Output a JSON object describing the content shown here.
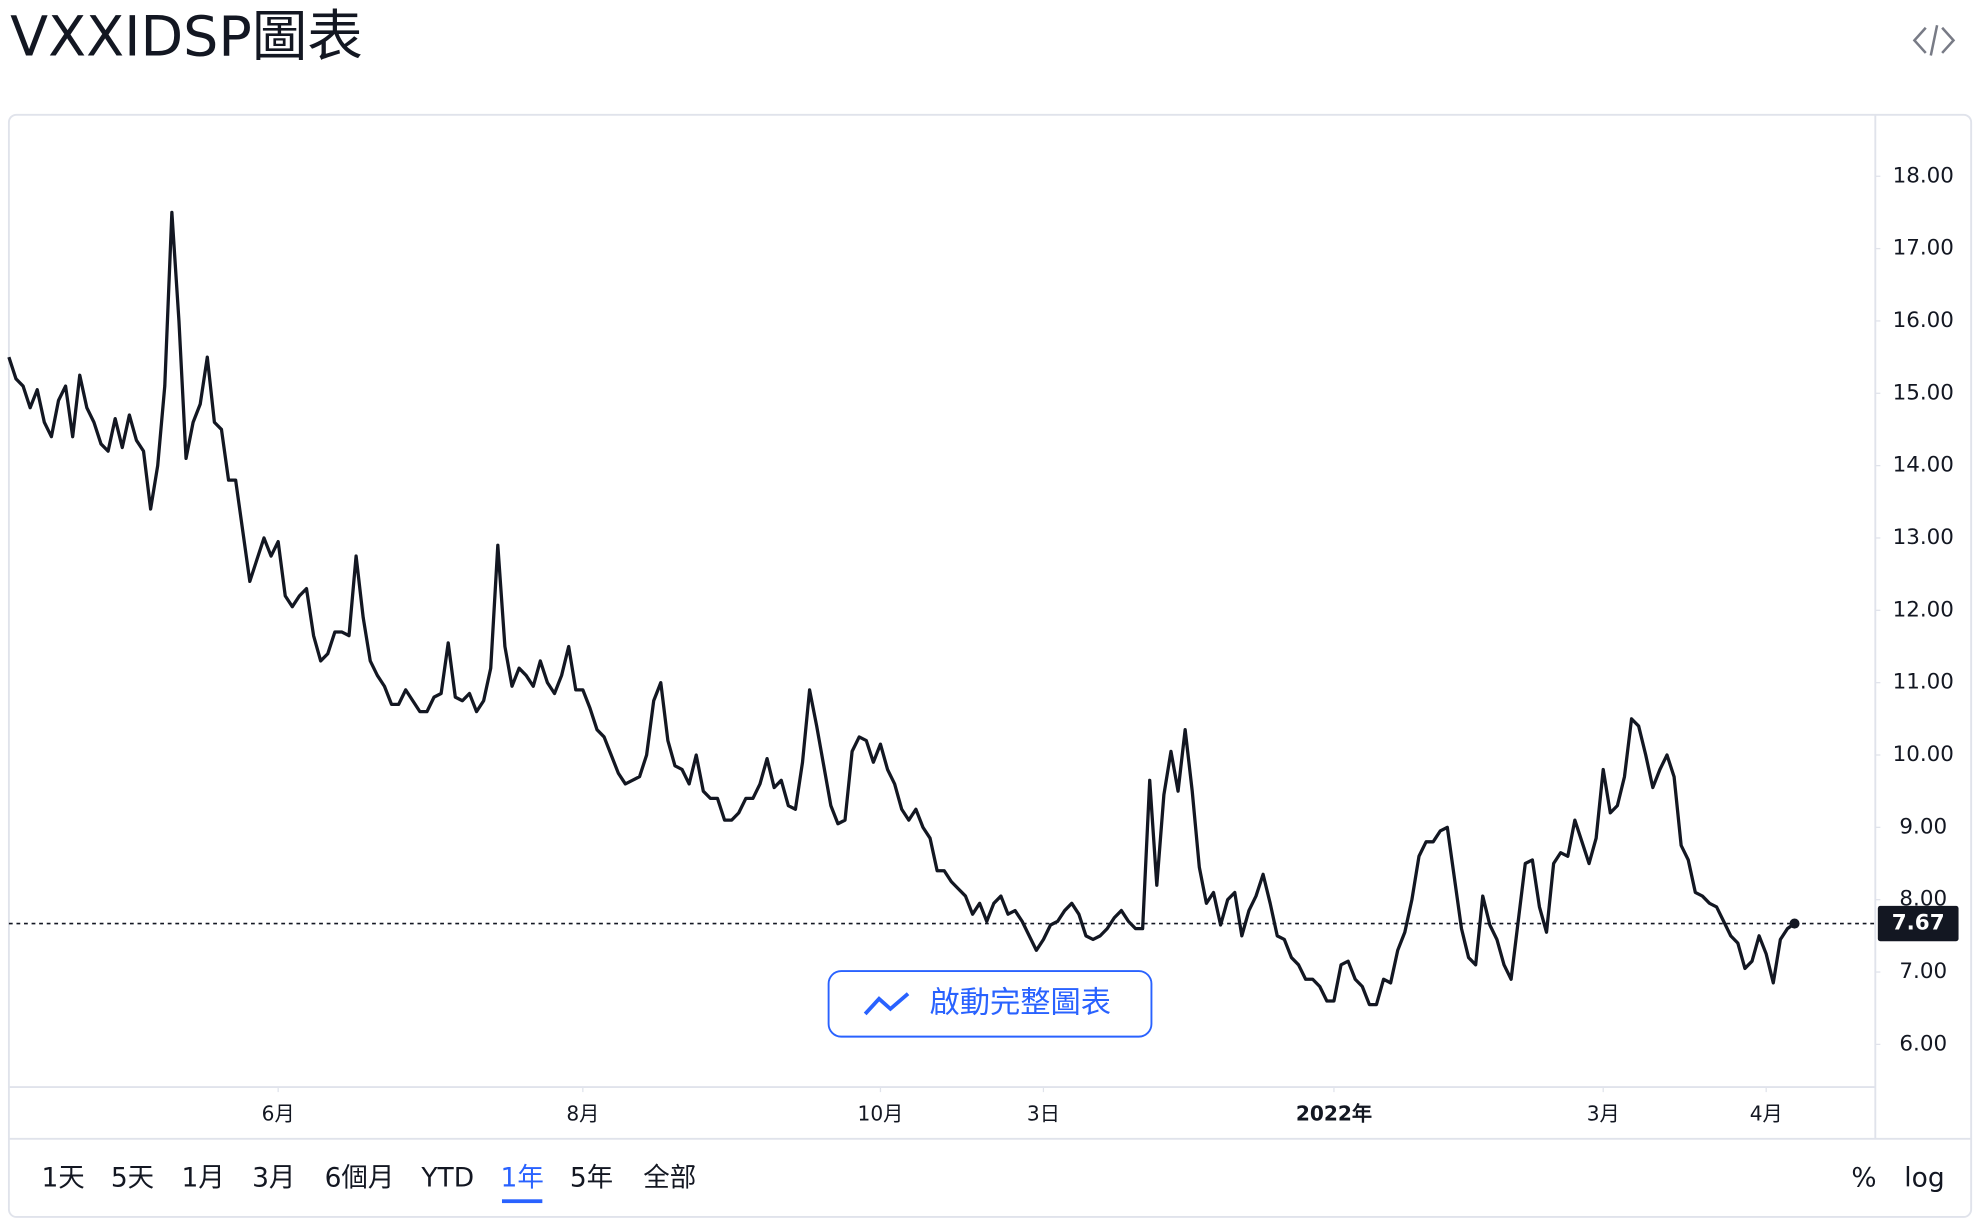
{
  "title": "VXXIDSP圖表",
  "chart_data": {
    "type": "line",
    "series": [
      {
        "color": "#131722",
        "values": [
          15.5,
          15.2,
          15.1,
          14.8,
          15.05,
          14.6,
          14.4,
          14.9,
          15.1,
          14.4,
          15.25,
          14.8,
          14.6,
          14.3,
          14.2,
          14.65,
          14.25,
          14.7,
          14.35,
          14.2,
          13.4,
          14.0,
          15.1,
          17.5,
          16.0,
          14.1,
          14.6,
          14.85,
          15.5,
          14.6,
          14.5,
          13.8,
          13.8,
          13.1,
          12.4,
          12.7,
          13.0,
          12.75,
          12.95,
          12.2,
          12.05,
          12.2,
          12.3,
          11.65,
          11.3,
          11.4,
          11.7,
          11.7,
          11.65,
          12.75,
          11.9,
          11.3,
          11.1,
          10.95,
          10.7,
          10.7,
          10.9,
          10.75,
          10.6,
          10.6,
          10.8,
          10.85,
          11.55,
          10.8,
          10.75,
          10.85,
          10.6,
          10.75,
          11.2,
          12.9,
          11.5,
          10.95,
          11.2,
          11.1,
          10.95,
          11.3,
          11.0,
          10.85,
          11.1,
          11.5,
          10.9,
          10.9,
          10.65,
          10.35,
          10.25,
          10.0,
          9.75,
          9.6,
          9.65,
          9.7,
          10.0,
          10.75,
          11.0,
          10.2,
          9.85,
          9.8,
          9.6,
          10.0,
          9.5,
          9.4,
          9.4,
          9.1,
          9.1,
          9.2,
          9.4,
          9.4,
          9.6,
          9.95,
          9.55,
          9.65,
          9.3,
          9.25,
          9.9,
          10.9,
          10.4,
          9.85,
          9.3,
          9.05,
          9.1,
          10.05,
          10.25,
          10.2,
          9.9,
          10.15,
          9.8,
          9.6,
          9.25,
          9.1,
          9.25,
          9.0,
          8.85,
          8.4,
          8.4,
          8.25,
          8.15,
          8.05,
          7.8,
          7.95,
          7.7,
          7.95,
          8.05,
          7.8,
          7.85,
          7.7,
          7.5,
          7.3,
          7.45,
          7.65,
          7.7,
          7.85,
          7.95,
          7.8,
          7.5,
          7.45,
          7.5,
          7.6,
          7.75,
          7.85,
          7.7,
          7.6,
          7.6,
          9.65,
          8.2,
          9.45,
          10.05,
          9.5,
          10.35,
          9.5,
          8.45,
          7.95,
          8.1,
          7.65,
          8.0,
          8.1,
          7.5,
          7.85,
          8.05,
          8.35,
          7.95,
          7.5,
          7.45,
          7.2,
          7.1,
          6.9,
          6.9,
          6.8,
          6.6,
          6.6,
          7.1,
          7.15,
          6.9,
          6.8,
          6.55,
          6.55,
          6.9,
          6.85,
          7.3,
          7.55,
          8.0,
          8.6,
          8.8,
          8.8,
          8.95,
          9.0,
          8.3,
          7.6,
          7.2,
          7.1,
          8.05,
          7.65,
          7.45,
          7.1,
          6.9,
          7.7,
          8.5,
          8.55,
          7.9,
          7.55,
          8.5,
          8.65,
          8.6,
          9.1,
          8.8,
          8.5,
          8.85,
          9.8,
          9.2,
          9.3,
          9.7,
          10.5,
          10.4,
          10.0,
          9.55,
          9.8,
          10.0,
          9.7,
          8.75,
          8.55,
          8.1,
          8.05,
          7.95,
          7.9,
          7.7,
          7.5,
          7.4,
          7.05,
          7.15,
          7.5,
          7.25,
          6.85,
          7.45,
          7.6,
          7.67
        ]
      }
    ],
    "xlim": [
      0,
      263.4
    ],
    "xticks": [
      {
        "value": 38,
        "label": "6月"
      },
      {
        "value": 81,
        "label": "8月"
      },
      {
        "value": 123,
        "label": "10月"
      },
      {
        "value": 146,
        "label": "3日"
      },
      {
        "value": 187,
        "label": "2022年",
        "bold": true
      },
      {
        "value": 225,
        "label": "3月"
      },
      {
        "value": 248,
        "label": "4月"
      }
    ],
    "ylim": [
      5.41,
      18.85
    ],
    "yticks": [
      {
        "value": 6,
        "label": "6.00"
      },
      {
        "value": 7,
        "label": "7.00"
      },
      {
        "value": 8,
        "label": "8.00"
      },
      {
        "value": 9,
        "label": "9.00"
      },
      {
        "value": 10,
        "label": "10.00"
      },
      {
        "value": 11,
        "label": "11.00"
      },
      {
        "value": 12,
        "label": "12.00"
      },
      {
        "value": 13,
        "label": "13.00"
      },
      {
        "value": 14,
        "label": "14.00"
      },
      {
        "value": 15,
        "label": "15.00"
      },
      {
        "value": 16,
        "label": "16.00"
      },
      {
        "value": 17,
        "label": "17.00"
      },
      {
        "value": 18,
        "label": "18.00"
      }
    ],
    "grid": false
  },
  "launch_button": "啟動完整圖表",
  "ranges": [
    "1天",
    "5天",
    "1月",
    "3月",
    "6個月",
    "YTD",
    "1年",
    "5年",
    "全部"
  ],
  "selected_range_index": 6,
  "scale_options": [
    "%",
    "log"
  ]
}
